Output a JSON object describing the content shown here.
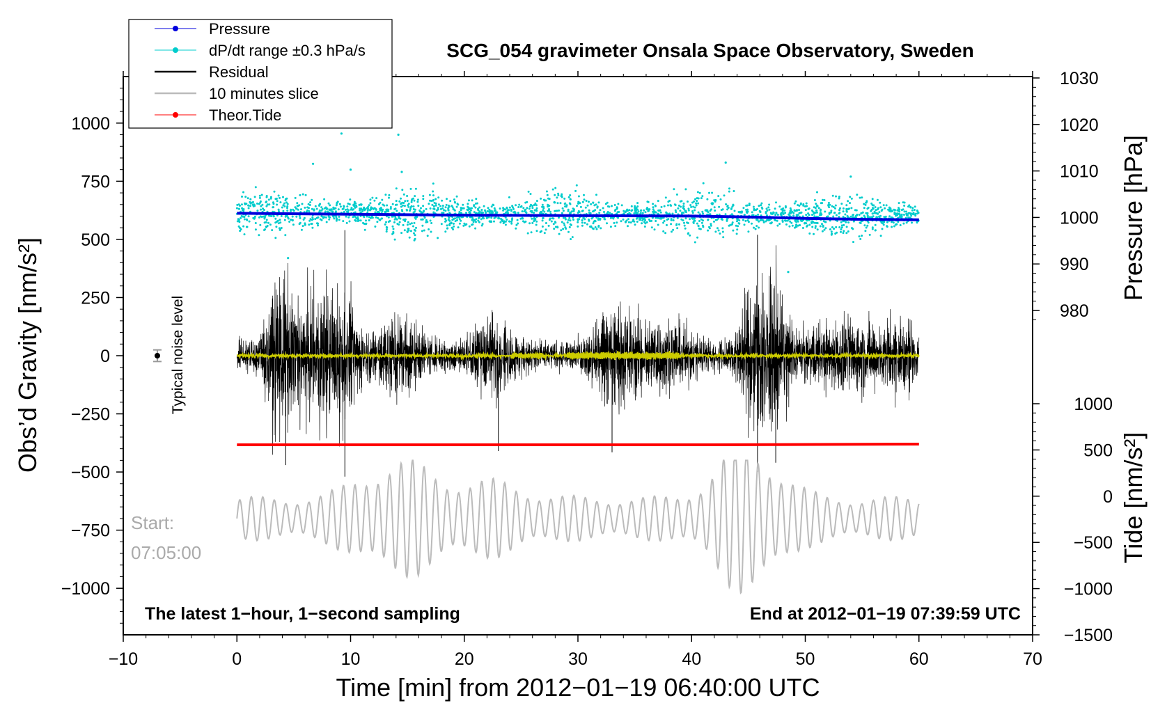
{
  "chart_data": {
    "type": "line",
    "title": "SCG_054 gravimeter Onsala Space Observatory, Sweden",
    "xlabel": "Time [min] from 2012−01−19 06:40:00 UTC",
    "ylabel_left": "Obs’d Gravity [nm/s²]",
    "ylabel_right_top": "Pressure [hPa]",
    "ylabel_right_bottom": "Tide [nm/s²]",
    "xlim": [
      -10,
      70
    ],
    "ylim_left": [
      -1200,
      1200
    ],
    "ylim_pressure": [
      970,
      1030
    ],
    "ylim_tide": [
      -1500,
      1000
    ],
    "x_ticks": [
      {
        "value": -10,
        "label": "−10"
      },
      {
        "value": 0,
        "label": "0"
      },
      {
        "value": 10,
        "label": "10"
      },
      {
        "value": 20,
        "label": "20"
      },
      {
        "value": 30,
        "label": "30"
      },
      {
        "value": 40,
        "label": "40"
      },
      {
        "value": 50,
        "label": "50"
      },
      {
        "value": 60,
        "label": "60"
      },
      {
        "value": 70,
        "label": "70"
      }
    ],
    "left_ticks": [
      {
        "value": 1000,
        "label": "1000"
      },
      {
        "value": 750,
        "label": "750"
      },
      {
        "value": 500,
        "label": "500"
      },
      {
        "value": 250,
        "label": "250"
      },
      {
        "value": 0,
        "label": "0"
      },
      {
        "value": -250,
        "label": "−250"
      },
      {
        "value": -500,
        "label": "−500"
      },
      {
        "value": -750,
        "label": "−750"
      },
      {
        "value": -1000,
        "label": "−1000"
      }
    ],
    "pressure_ticks": [
      {
        "value": 1030,
        "label": "1030"
      },
      {
        "value": 1020,
        "label": "1020"
      },
      {
        "value": 1010,
        "label": "1010"
      },
      {
        "value": 1000,
        "label": "1000"
      },
      {
        "value": 990,
        "label": "990"
      },
      {
        "value": 980,
        "label": "980"
      }
    ],
    "tide_ticks": [
      {
        "value": 1000,
        "label": "1000"
      },
      {
        "value": 500,
        "label": "500"
      },
      {
        "value": 0,
        "label": "0"
      },
      {
        "value": -500,
        "label": "−500"
      },
      {
        "value": -1000,
        "label": "−1000"
      },
      {
        "value": -1500,
        "label": "−1500"
      }
    ],
    "legend": [
      {
        "name": "Pressure",
        "color": "#0000dd",
        "marker": "dot"
      },
      {
        "name": "dP/dt range ±0.3 hPa/s",
        "color": "#00cccc",
        "marker": "dot"
      },
      {
        "name": "Residual",
        "color": "#000000",
        "marker": "line"
      },
      {
        "name": "10 minutes slice",
        "color": "#bbbbbb",
        "marker": "line"
      },
      {
        "name": "Theor.Tide",
        "color": "#ff0000",
        "marker": "dot"
      }
    ],
    "series": [
      {
        "name": "Pressure",
        "axis": "pressure",
        "x": [
          0,
          10,
          20,
          30,
          40,
          45,
          50,
          55,
          60
        ],
        "values": [
          1000.9,
          1000.7,
          1000.5,
          1000.4,
          1000.3,
          1000.1,
          999.8,
          999.6,
          999.5
        ]
      },
      {
        "name": "dP/dt range ±0.3 hPa/s",
        "axis": "left",
        "x_range": [
          0,
          60
        ],
        "center": 615,
        "spread": 50,
        "outliers": [
          [
            9.2,
            955
          ],
          [
            14.2,
            950
          ],
          [
            6.7,
            825
          ],
          [
            43,
            830
          ],
          [
            10,
            800
          ],
          [
            14.5,
            790
          ],
          [
            54,
            770
          ],
          [
            48.5,
            360
          ],
          [
            4.5,
            420
          ]
        ]
      },
      {
        "name": "Residual",
        "axis": "left",
        "x_range": [
          0,
          60
        ],
        "amplitude_range": [
          -520,
          540
        ],
        "peaks": [
          [
            9.5,
            540
          ],
          [
            9.5,
            -520
          ],
          [
            45.8,
            520
          ],
          [
            45.8,
            -500
          ],
          [
            4.3,
            -470
          ],
          [
            47.4,
            -460
          ],
          [
            33,
            -415
          ],
          [
            23,
            -410
          ]
        ]
      },
      {
        "name": "10 minutes slice",
        "axis": "left",
        "x_range": [
          0,
          60
        ],
        "center": -700,
        "amplitude_range": [
          -1070,
          -450
        ]
      },
      {
        "name": "Theor.Tide",
        "axis": "left",
        "x": [
          0,
          41.8,
          60
        ],
        "values": [
          -383,
          -383,
          -380
        ]
      },
      {
        "name": "Filtered residual",
        "axis": "left",
        "color": "#cccc00",
        "x_range": [
          0,
          60
        ],
        "center": 0
      }
    ],
    "annotations": {
      "bottom_left": "The latest 1−hour, 1−second sampling",
      "bottom_right": "End at 2012−01−19 07:39:59 UTC",
      "start_label": "Start:",
      "start_time": "07:05:00",
      "noise_label": "Typical noise level",
      "noise_marker": {
        "x": -7,
        "value": 0,
        "error": 25
      }
    }
  }
}
